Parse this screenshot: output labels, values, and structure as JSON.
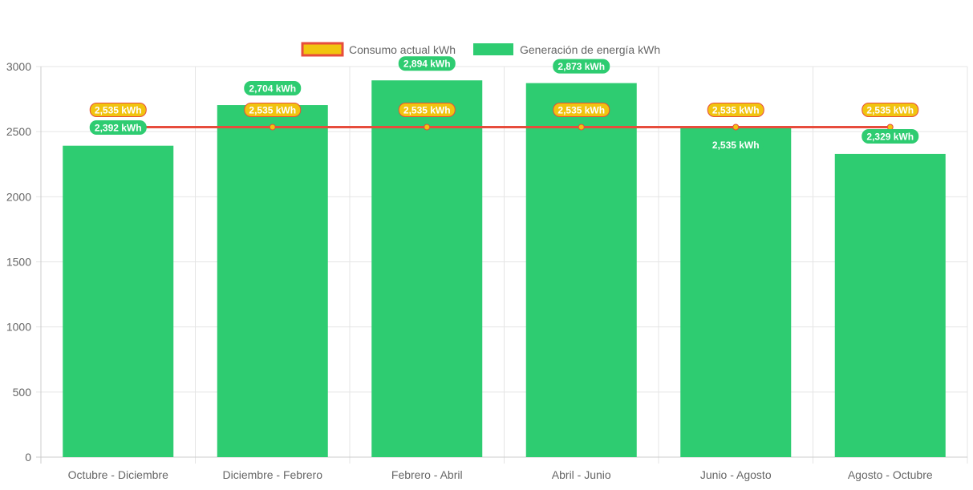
{
  "chart_data": {
    "type": "bar",
    "title": "",
    "xlabel": "",
    "ylabel": "",
    "ylim": [
      0,
      3000
    ],
    "yticks": [
      0,
      500,
      1000,
      1500,
      2000,
      2500,
      3000
    ],
    "grid": true,
    "legend_position": "top-center",
    "categories": [
      "Octubre - Diciembre",
      "Diciembre - Febrero",
      "Febrero - Abril",
      "Abril - Junio",
      "Junio - Agosto",
      "Agosto - Octubre"
    ],
    "series": [
      {
        "name": "Consumo actual kWh",
        "type": "line",
        "color": "#e74c3c",
        "fill": "#f1c40f",
        "values": [
          2535,
          2535,
          2535,
          2535,
          2535,
          2535
        ],
        "labels": [
          "2,535 kWh",
          "2,535 kWh",
          "2,535 kWh",
          "2,535 kWh",
          "2,535 kWh",
          "2,535 kWh"
        ]
      },
      {
        "name": "Generación de energía kWh",
        "type": "bar",
        "color": "#2ecc71",
        "values": [
          2392,
          2704,
          2894,
          2873,
          2535,
          2329
        ],
        "labels": [
          "2,392 kWh",
          "2,704 kWh",
          "2,894 kWh",
          "2,873 kWh",
          "2,535 kWh",
          "2,329 kWh"
        ]
      }
    ]
  }
}
